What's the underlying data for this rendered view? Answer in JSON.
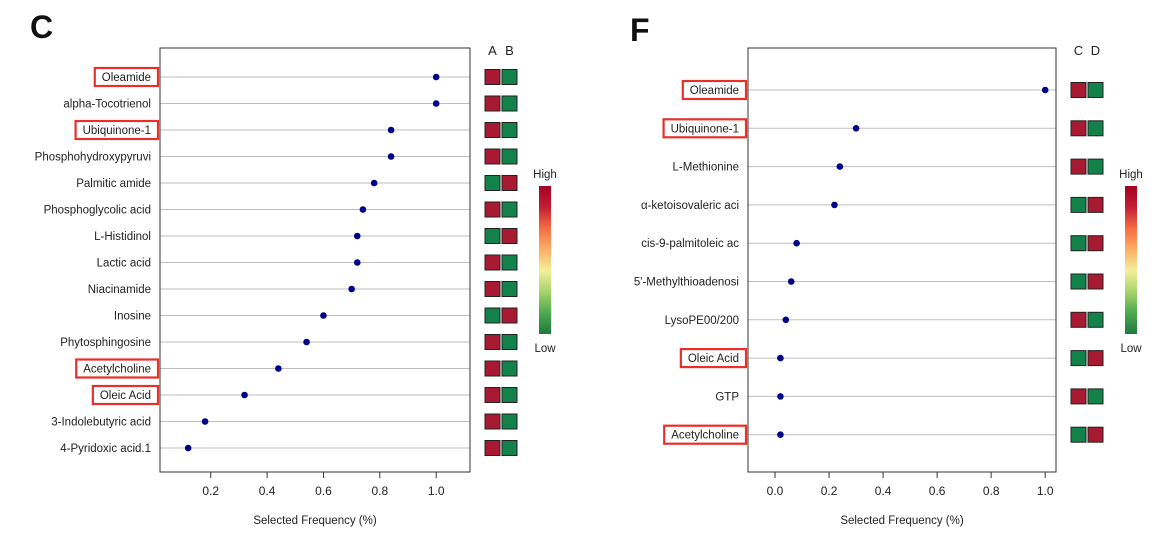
{
  "colors": {
    "point": "#00008B",
    "gridline": "#bfbfbf",
    "highlight_box": "#e8302a",
    "heat_red": "#a81932",
    "heat_green": "#13814a",
    "scale_stops": [
      "#1e7a3e",
      "#4da94f",
      "#a6d46a",
      "#f3ee9a",
      "#fcae63",
      "#f46d43",
      "#c11f34",
      "#a50026"
    ]
  },
  "scale": {
    "high_label": "High",
    "low_label": "Low"
  },
  "chart_data": [
    {
      "type": "scatter",
      "panel_label": "C",
      "xlabel": "Selected Frequency (%)",
      "ylabel": "",
      "xlim": [
        0.02,
        1.12
      ],
      "xticks": [
        0.2,
        0.4,
        0.6,
        0.8,
        1.0
      ],
      "xtick_labels": [
        "0.2",
        "0.4",
        "0.6",
        "0.8",
        "1.0"
      ],
      "heat_columns": [
        "A",
        "B"
      ],
      "grid": "horizontal",
      "categories": [
        "Oleamide",
        "alpha-Tocotrienol",
        "Ubiquinone-1",
        "Phosphohydroxypyruvi",
        "Palmitic amide",
        "Phosphoglycolic acid",
        "L-Histidinol",
        "Lactic acid",
        "Niacinamide",
        "Inosine",
        "Phytosphingosine",
        "Acetylcholine",
        "Oleic Acid",
        "3-Indolebutyric acid",
        "4-Pyridoxic acid.1"
      ],
      "values": [
        1.0,
        1.0,
        0.84,
        0.84,
        0.78,
        0.74,
        0.72,
        0.72,
        0.7,
        0.6,
        0.54,
        0.44,
        0.32,
        0.18,
        0.12
      ],
      "highlighted": [
        true,
        false,
        true,
        false,
        false,
        false,
        false,
        false,
        false,
        false,
        false,
        true,
        true,
        false,
        false
      ],
      "heat": [
        [
          "high",
          "low"
        ],
        [
          "high",
          "low"
        ],
        [
          "high",
          "low"
        ],
        [
          "high",
          "low"
        ],
        [
          "low",
          "high"
        ],
        [
          "high",
          "low"
        ],
        [
          "low",
          "high"
        ],
        [
          "high",
          "low"
        ],
        [
          "high",
          "low"
        ],
        [
          "low",
          "high"
        ],
        [
          "high",
          "low"
        ],
        [
          "high",
          "low"
        ],
        [
          "high",
          "low"
        ],
        [
          "high",
          "low"
        ],
        [
          "high",
          "low"
        ]
      ]
    },
    {
      "type": "scatter",
      "panel_label": "F",
      "xlabel": "Selected Frequency (%)",
      "ylabel": "",
      "xlim": [
        -0.1,
        1.04
      ],
      "xticks": [
        0.0,
        0.2,
        0.4,
        0.6,
        0.8,
        1.0
      ],
      "xtick_labels": [
        "0.0",
        "0.2",
        "0.4",
        "0.6",
        "0.8",
        "1.0"
      ],
      "heat_columns": [
        "C",
        "D"
      ],
      "grid": "horizontal",
      "categories": [
        "Oleamide",
        "Ubiquinone-1",
        "L-Methionine",
        "α-ketoisovaleric aci",
        "cis-9-palmitoleic ac",
        "5'-Methylthioadenosi",
        "LysoPE00/200",
        "Oleic Acid",
        "GTP",
        "Acetylcholine"
      ],
      "values": [
        1.0,
        0.3,
        0.24,
        0.22,
        0.08,
        0.06,
        0.04,
        0.02,
        0.02,
        0.02
      ],
      "highlighted": [
        true,
        true,
        false,
        false,
        false,
        false,
        false,
        true,
        false,
        true
      ],
      "heat": [
        [
          "high",
          "low"
        ],
        [
          "high",
          "low"
        ],
        [
          "high",
          "low"
        ],
        [
          "low",
          "high"
        ],
        [
          "low",
          "high"
        ],
        [
          "low",
          "high"
        ],
        [
          "high",
          "low"
        ],
        [
          "low",
          "high"
        ],
        [
          "high",
          "low"
        ],
        [
          "low",
          "high"
        ]
      ]
    }
  ]
}
